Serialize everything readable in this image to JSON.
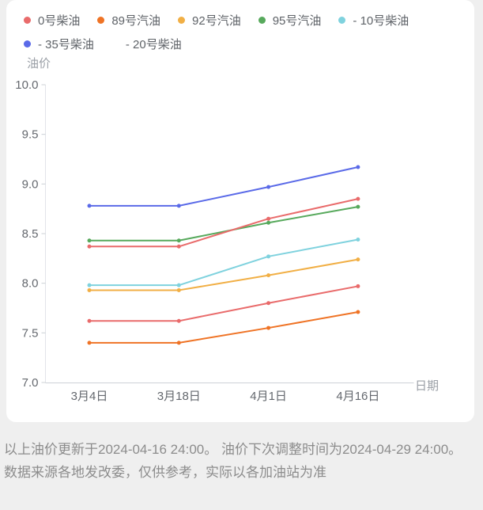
{
  "theme": {
    "page_bg": "#efefef",
    "card_bg": "#ffffff",
    "axis_line_color": "#ccd0d6",
    "yaxis_line_color": "#e2e4e9",
    "tick_text_color": "#64686e",
    "axis_name_color": "#9ba0a7",
    "legend_text_color": "#5f6368",
    "footnote_text_color": "#8c8c8c"
  },
  "chart_data": {
    "type": "line",
    "title": "",
    "xlabel": "日期",
    "ylabel": "油价",
    "categories": [
      "3月4日",
      "3月18日",
      "4月1日",
      "4月16日"
    ],
    "ylim": [
      7.0,
      10.0
    ],
    "yticks": [
      "10.0",
      "9.5",
      "9.0",
      "8.5",
      "8.0",
      "7.5",
      "7.0"
    ],
    "grid": false,
    "legend_position": "top",
    "series": [
      {
        "name": "0号柴油",
        "color": "#e96b6b",
        "legend_marker": "visible",
        "values": [
          7.62,
          7.62,
          7.8,
          7.97
        ]
      },
      {
        "name": "89号汽油",
        "color": "#ef7325",
        "legend_marker": "visible",
        "values": [
          7.4,
          7.4,
          7.55,
          7.71
        ]
      },
      {
        "name": "92号汽油",
        "color": "#f1af45",
        "legend_marker": "visible",
        "values": [
          7.93,
          7.93,
          8.08,
          8.24
        ]
      },
      {
        "name": "95号汽油",
        "color": "#57a95c",
        "legend_marker": "visible",
        "values": [
          8.43,
          8.43,
          8.61,
          8.77
        ]
      },
      {
        "name": "- 10号柴油",
        "color": "#7fd2de",
        "legend_marker": "visible",
        "values": [
          7.98,
          7.98,
          8.27,
          8.44
        ]
      },
      {
        "name": "- 35号柴油",
        "color": "#5a6ae8",
        "legend_marker": "visible",
        "values": [
          8.78,
          8.78,
          8.97,
          9.17
        ]
      },
      {
        "name": "- 20号柴油",
        "color": "#e96b6b",
        "legend_marker": "hidden",
        "values": [
          8.37,
          8.37,
          8.65,
          8.85
        ]
      }
    ]
  },
  "footnote": {
    "text": "以上油价更新于2024-04-16 24:00。 油价下次调整时间为2024-04-29 24:00。 数据来源各地发改委，仅供参考，实际以各加油站为准"
  }
}
